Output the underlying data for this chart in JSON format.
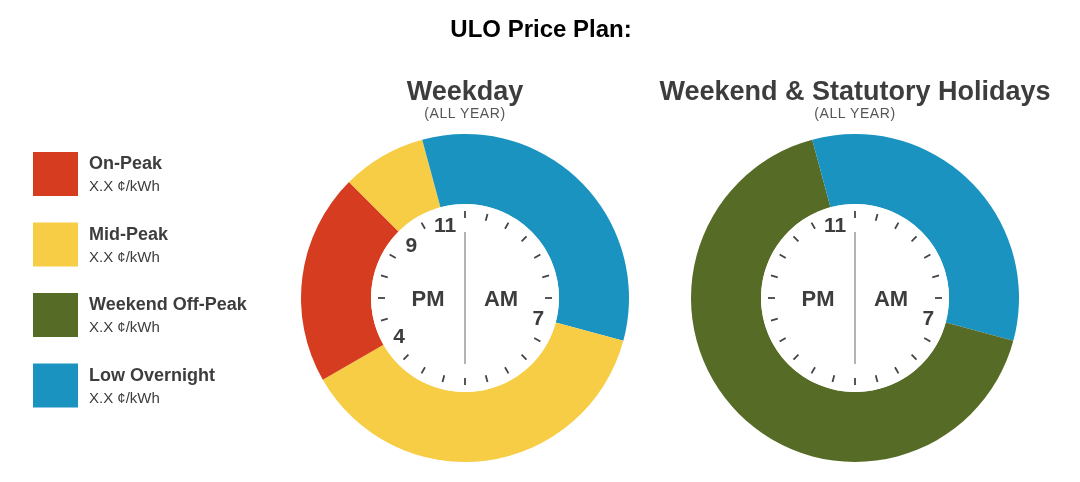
{
  "chart_data": [
    {
      "type": "other",
      "title": "ULO Price Plan:",
      "categories": [
        "On-Peak",
        "Mid-Peak",
        "Weekend Off-Peak",
        "Low Overnight"
      ],
      "colors": [
        "#d63c1f",
        "#f6cd45",
        "#566b25",
        "#1a93c1"
      ],
      "annotations": [
        "X.X ¢/kWh",
        "X.X ¢/kWh",
        "X.X ¢/kWh",
        "X.X ¢/kWh"
      ]
    },
    {
      "type": "donut",
      "title": "Weekday",
      "subtitle": "(ALL YEAR)",
      "categories": [
        null,
        null,
        null,
        null,
        null
      ],
      "values": [
        29.2,
        37.5,
        20.8,
        8.3,
        4.2
      ],
      "colors": [
        "#1a93c1",
        "#f6cd45",
        "#d63c1f",
        "#f6cd45",
        "#1a93c1"
      ],
      "annotations": [
        "PM",
        "AM",
        "7",
        "4",
        "9",
        "11"
      ]
    },
    {
      "type": "donut",
      "title": "Weekend & Statutory Holidays",
      "subtitle": "(ALL YEAR)",
      "categories": [
        null,
        null,
        null
      ],
      "values": [
        29.2,
        66.6,
        4.2
      ],
      "colors": [
        "#1a93c1",
        "#566b25",
        "#1a93c1"
      ],
      "annotations": [
        "PM",
        "AM",
        "7",
        "11"
      ]
    }
  ]
}
